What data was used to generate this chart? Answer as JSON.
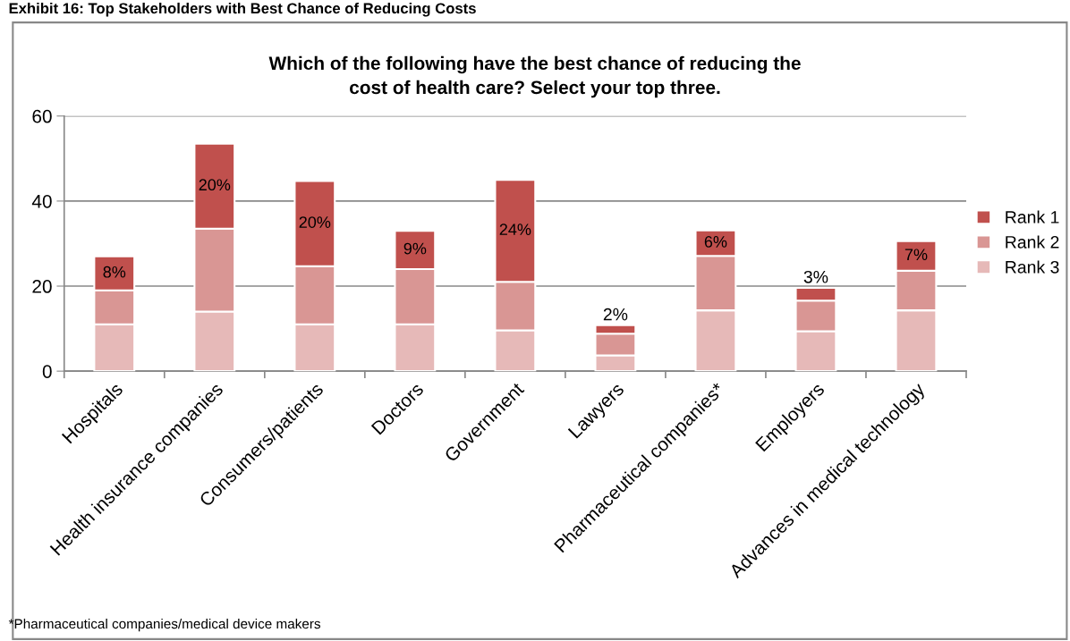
{
  "chart_data": {
    "type": "bar",
    "stacked": true,
    "title": "Which of the following have the best chance of reducing the\ncost of health care? Select your top three.",
    "categories": [
      "Hospitals",
      "Health insurance companies",
      "Consumers/patients",
      "Doctors",
      "Government",
      "Lawyers",
      "Pharmaceutical companies*",
      "Employers",
      "Advances in medical technology"
    ],
    "series": [
      {
        "name": "Rank 3",
        "color": "#e6b9b8",
        "values": [
          11,
          14,
          11,
          11,
          9.6,
          3.7,
          14.3,
          9.4,
          14.3
        ]
      },
      {
        "name": "Rank 2",
        "color": "#d99694",
        "values": [
          8,
          19.5,
          13.7,
          13,
          11.4,
          5.1,
          12.8,
          7.2,
          9.3
        ]
      },
      {
        "name": "Rank 1",
        "color": "#c0504d",
        "values": [
          8,
          20,
          20,
          9,
          24,
          2,
          6,
          3,
          7
        ],
        "value_labels": [
          "8%",
          "20%",
          "20%",
          "9%",
          "24%",
          "2%",
          "6%",
          "3%",
          "7%"
        ]
      }
    ],
    "ylim": [
      0,
      60
    ],
    "yticks": [
      0,
      20,
      40,
      60
    ],
    "grid": "y",
    "legend": "right",
    "annotations": [
      "Exhibit 16: Top Stakeholders with Best Chance of Reducing Costs",
      "*Pharmaceutical companies/medical device makers"
    ]
  }
}
